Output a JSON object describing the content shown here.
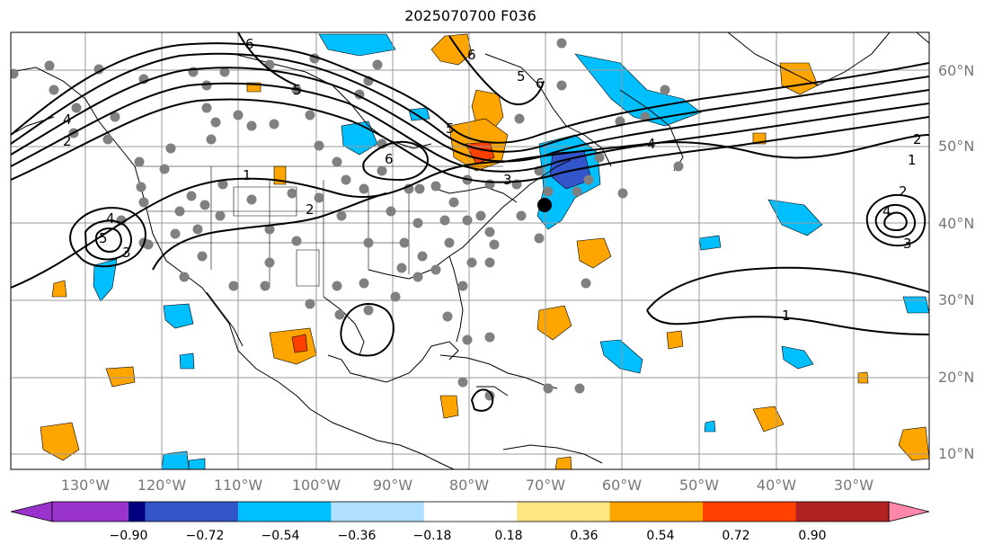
{
  "title": "2025070700 F036",
  "lon_labels": [
    "130°W",
    "120°W",
    "110°W",
    "100°W",
    "90°W",
    "80°W",
    "70°W",
    "60°W",
    "50°W",
    "40°W",
    "30°W"
  ],
  "lat_labels": [
    "60°N",
    "50°N",
    "40°N",
    "30°N",
    "20°N",
    "10°N"
  ],
  "colorbar": {
    "tick_labels": [
      "−0.90",
      "−0.72",
      "−0.54",
      "−0.36",
      "−0.18",
      "0.18",
      "0.36",
      "0.54",
      "0.72",
      "0.90"
    ],
    "colors": [
      "#9933cc",
      "#000080",
      "#3355cc",
      "#00bfff",
      "#b0e0ff",
      "#ffffff",
      "#ffe680",
      "#ffa500",
      "#ff4000",
      "#b22222",
      "#ff88aa"
    ]
  },
  "contour_labels": [
    "6",
    "6",
    "6",
    "5",
    "5",
    "5",
    "4",
    "4",
    "4",
    "3",
    "3",
    "2",
    "2",
    "2",
    "2",
    "1",
    "1",
    "1",
    "6",
    "5",
    "4",
    "3"
  ],
  "colors": {
    "frame": "#000000",
    "grid": "#999999",
    "station": "#808080",
    "coast": "#000000"
  }
}
